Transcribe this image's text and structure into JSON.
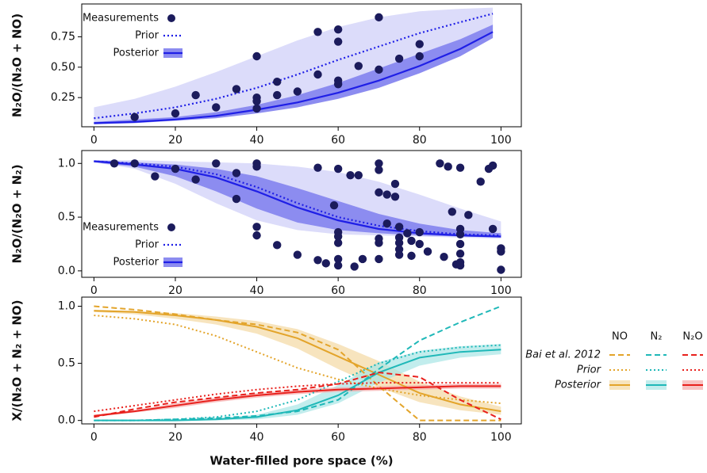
{
  "chart_data": [
    {
      "type": "line",
      "ylabel": "N₂O/(N₂O + NO)",
      "legend": "upper left",
      "xlim": [
        -3,
        105
      ],
      "xticks": [
        0,
        20,
        40,
        60,
        80,
        100
      ],
      "ylim": [
        0.01,
        1.02
      ],
      "yticks": [
        0.25,
        {
          "value": 0.5,
          "label": "0.50"
        },
        0.75
      ],
      "measurements": {
        "name": "Measurements",
        "color": "#1b1b5c",
        "x": [
          10,
          20,
          25,
          30,
          35,
          40,
          40,
          40,
          40,
          45,
          45,
          50,
          55,
          55,
          60,
          60,
          60,
          60,
          65,
          70,
          70,
          75,
          80,
          80
        ],
        "values": [
          0.09,
          0.12,
          0.27,
          0.17,
          0.32,
          0.59,
          0.25,
          0.22,
          0.16,
          0.38,
          0.27,
          0.3,
          0.79,
          0.44,
          0.81,
          0.71,
          0.39,
          0.36,
          0.51,
          0.91,
          0.48,
          0.57,
          0.69,
          0.59
        ]
      },
      "x": [
        0,
        10,
        20,
        30,
        40,
        50,
        60,
        70,
        80,
        90,
        98
      ],
      "series": [
        {
          "name": "Prior",
          "color": "#1f1fe6",
          "style": "dotted",
          "band_color": "#dcdcfa",
          "values": [
            0.08,
            0.12,
            0.17,
            0.24,
            0.33,
            0.44,
            0.56,
            0.67,
            0.78,
            0.87,
            0.94
          ],
          "band_low": [
            0.03,
            0.05,
            0.07,
            0.11,
            0.16,
            0.23,
            0.32,
            0.43,
            0.55,
            0.66,
            0.75
          ],
          "band_high": [
            0.17,
            0.24,
            0.34,
            0.46,
            0.59,
            0.72,
            0.83,
            0.91,
            0.96,
            0.98,
            0.99
          ]
        },
        {
          "name": "Posterior",
          "color": "#1f1fe6",
          "style": "solid",
          "band_color": "#8c8cf0",
          "values": [
            0.04,
            0.05,
            0.07,
            0.1,
            0.15,
            0.21,
            0.29,
            0.39,
            0.51,
            0.65,
            0.79
          ],
          "band_low": [
            0.03,
            0.04,
            0.06,
            0.08,
            0.12,
            0.17,
            0.24,
            0.33,
            0.45,
            0.59,
            0.74
          ],
          "band_high": [
            0.05,
            0.07,
            0.09,
            0.13,
            0.19,
            0.27,
            0.37,
            0.49,
            0.61,
            0.73,
            0.85
          ]
        }
      ]
    },
    {
      "type": "line",
      "ylabel": "N₂O/(N₂O + N₂)",
      "legend": "lower left",
      "xlim": [
        -3,
        105
      ],
      "xticks": [
        0,
        20,
        40,
        60,
        80,
        100
      ],
      "ylim": [
        -0.06,
        1.12
      ],
      "yticks": [
        {
          "value": 0,
          "label": "0.0"
        },
        {
          "value": 0.5,
          "label": "0.5"
        },
        {
          "value": 1,
          "label": "1.0"
        }
      ],
      "measurements": {
        "name": "Measurements",
        "color": "#1b1b5c",
        "x": [
          5,
          10,
          15,
          20,
          25,
          30,
          35,
          35,
          40,
          40,
          40,
          40,
          45,
          50,
          55,
          55,
          57,
          59,
          60,
          60,
          60,
          60,
          60,
          60,
          63,
          65,
          64,
          66,
          70,
          70,
          70,
          70,
          70,
          70,
          72,
          72,
          74,
          74,
          75,
          75,
          75,
          75,
          75,
          77,
          78,
          78,
          80,
          80,
          82,
          85,
          86,
          87,
          88,
          89,
          90,
          90,
          90,
          90,
          90,
          90,
          90,
          92,
          95,
          97,
          98,
          98,
          100,
          100,
          100
        ],
        "values": [
          1.0,
          1.0,
          0.88,
          0.95,
          0.85,
          1.0,
          0.91,
          0.67,
          1.0,
          0.97,
          0.41,
          0.33,
          0.24,
          0.15,
          0.96,
          0.1,
          0.07,
          0.61,
          0.95,
          0.36,
          0.32,
          0.26,
          0.11,
          0.05,
          0.89,
          0.89,
          0.04,
          0.11,
          1.0,
          0.94,
          0.73,
          0.3,
          0.26,
          0.11,
          0.71,
          0.44,
          0.81,
          0.69,
          0.41,
          0.31,
          0.26,
          0.2,
          0.15,
          0.35,
          0.28,
          0.14,
          0.36,
          0.25,
          0.18,
          1.0,
          0.13,
          0.97,
          0.55,
          0.06,
          0.96,
          0.39,
          0.34,
          0.25,
          0.16,
          0.08,
          0.05,
          0.52,
          0.83,
          0.95,
          0.98,
          0.39,
          0.21,
          0.18,
          0.01
        ]
      },
      "x": [
        0,
        10,
        20,
        30,
        40,
        50,
        60,
        70,
        80,
        90,
        100
      ],
      "series": [
        {
          "name": "Prior",
          "color": "#1f1fe6",
          "style": "dotted",
          "band_color": "#dcdcfa",
          "values": [
            1.02,
            1.0,
            0.97,
            0.9,
            0.78,
            0.63,
            0.5,
            0.42,
            0.37,
            0.34,
            0.33
          ],
          "band_low": [
            1.01,
            0.95,
            0.81,
            0.63,
            0.47,
            0.38,
            0.34,
            0.33,
            0.32,
            0.31,
            0.3
          ],
          "band_high": [
            1.03,
            1.03,
            1.02,
            1.01,
            1.0,
            0.97,
            0.92,
            0.83,
            0.71,
            0.58,
            0.46
          ]
        },
        {
          "name": "Posterior",
          "color": "#1f1fe6",
          "style": "solid",
          "band_color": "#8c8cf0",
          "values": [
            1.02,
            0.99,
            0.95,
            0.87,
            0.74,
            0.59,
            0.47,
            0.39,
            0.35,
            0.33,
            0.32
          ],
          "band_low": [
            1.01,
            0.97,
            0.88,
            0.74,
            0.58,
            0.45,
            0.38,
            0.35,
            0.33,
            0.32,
            0.31
          ],
          "band_high": [
            1.03,
            1.01,
            0.99,
            0.95,
            0.88,
            0.77,
            0.65,
            0.53,
            0.44,
            0.38,
            0.35
          ]
        }
      ]
    },
    {
      "type": "line",
      "ylabel": "X/(N₂O + N₂ + NO)",
      "xlabel": "Water-filled pore space (%)",
      "legend": "right",
      "xlim": [
        -3,
        105
      ],
      "xticks": [
        0,
        20,
        40,
        60,
        80,
        100
      ],
      "ylim": [
        -0.03,
        1.08
      ],
      "yticks": [
        {
          "value": 0,
          "label": "0.0"
        },
        {
          "value": 0.5,
          "label": "0.5"
        },
        {
          "value": 1,
          "label": "1.0"
        }
      ],
      "x": [
        0,
        10,
        20,
        30,
        40,
        50,
        60,
        70,
        80,
        90,
        100
      ],
      "curve_names": [
        "Bai et al. 2012",
        "Prior",
        "Posterior"
      ],
      "curve_styles": [
        "dashed",
        "dotted",
        "solid"
      ],
      "series": [
        {
          "name": "NO",
          "color": "#e3a42a",
          "band_color": "#f3d9a3",
          "curves": [
            [
              1.0,
              0.97,
              0.93,
              0.88,
              0.84,
              0.77,
              0.62,
              0.3,
              0.0,
              0.0,
              0.0
            ],
            [
              0.92,
              0.89,
              0.84,
              0.74,
              0.6,
              0.46,
              0.36,
              0.28,
              0.22,
              0.18,
              0.15
            ],
            [
              0.96,
              0.95,
              0.92,
              0.88,
              0.82,
              0.72,
              0.56,
              0.4,
              0.24,
              0.14,
              0.08
            ]
          ],
          "band_low": [
            0.95,
            0.93,
            0.89,
            0.84,
            0.76,
            0.63,
            0.45,
            0.29,
            0.16,
            0.09,
            0.05
          ],
          "band_high": [
            0.97,
            0.96,
            0.94,
            0.91,
            0.87,
            0.8,
            0.67,
            0.52,
            0.34,
            0.21,
            0.12
          ]
        },
        {
          "name": "N₂",
          "color": "#1fb8b8",
          "band_color": "#a8e6e6",
          "curves": [
            [
              0,
              0,
              0.01,
              0.02,
              0.04,
              0.08,
              0.18,
              0.45,
              0.7,
              0.86,
              1.0
            ],
            [
              0,
              0,
              0.01,
              0.03,
              0.08,
              0.18,
              0.34,
              0.5,
              0.6,
              0.64,
              0.66
            ],
            [
              0,
              0,
              0,
              0.01,
              0.03,
              0.09,
              0.22,
              0.42,
              0.55,
              0.6,
              0.62
            ]
          ],
          "band_low": [
            0,
            0,
            0,
            0,
            0.01,
            0.05,
            0.15,
            0.33,
            0.48,
            0.55,
            0.58
          ],
          "band_high": [
            0,
            0,
            0.01,
            0.02,
            0.05,
            0.14,
            0.31,
            0.51,
            0.61,
            0.65,
            0.67
          ]
        },
        {
          "name": "N₂O",
          "color": "#e8201c",
          "band_color": "#f5a8a8",
          "curves": [
            [
              0.03,
              0.1,
              0.16,
              0.2,
              0.24,
              0.27,
              0.32,
              0.42,
              0.38,
              0.18,
              0.01
            ],
            [
              0.08,
              0.13,
              0.18,
              0.23,
              0.27,
              0.3,
              0.32,
              0.33,
              0.33,
              0.33,
              0.33
            ],
            [
              0.04,
              0.08,
              0.13,
              0.18,
              0.22,
              0.25,
              0.27,
              0.28,
              0.29,
              0.3,
              0.3
            ]
          ],
          "band_low": [
            0.03,
            0.07,
            0.11,
            0.16,
            0.2,
            0.23,
            0.25,
            0.26,
            0.27,
            0.28,
            0.28
          ],
          "band_high": [
            0.05,
            0.09,
            0.15,
            0.2,
            0.24,
            0.27,
            0.29,
            0.3,
            0.31,
            0.32,
            0.32
          ]
        }
      ]
    }
  ]
}
